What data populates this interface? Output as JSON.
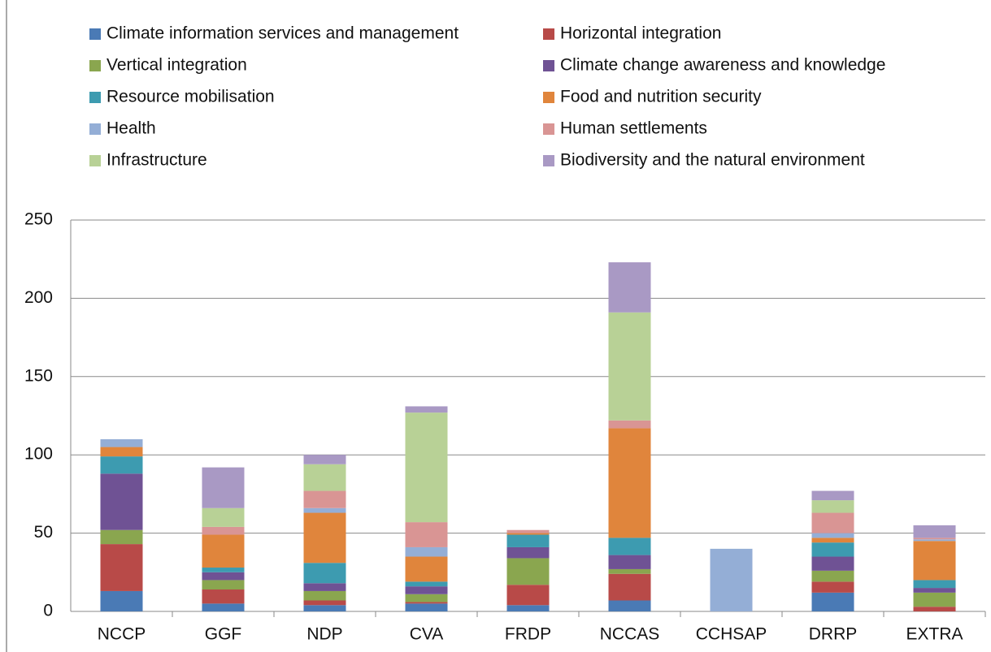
{
  "chart_data": {
    "type": "stacked_bar",
    "categories": [
      "NCCP",
      "GGF",
      "NDP",
      "CVA",
      "FRDP",
      "NCCAS",
      "CCHSAP",
      "DRRP",
      "EXTRA"
    ],
    "series": [
      {
        "name": "Climate information services and management",
        "color": "#4a7ab5",
        "values": [
          13,
          5,
          4,
          5,
          4,
          7,
          0,
          12,
          0
        ]
      },
      {
        "name": "Horizontal integration",
        "color": "#b84a48",
        "values": [
          30,
          9,
          3,
          1,
          13,
          17,
          0,
          7,
          3
        ]
      },
      {
        "name": "Vertical integration",
        "color": "#8aa64f",
        "values": [
          9,
          6,
          6,
          5,
          17,
          3,
          0,
          7,
          9
        ]
      },
      {
        "name": "Climate change awareness and knowledge",
        "color": "#6f5294",
        "values": [
          36,
          5,
          5,
          5,
          7,
          9,
          0,
          9,
          3
        ]
      },
      {
        "name": "Resource mobilisation",
        "color": "#3d9bb0",
        "values": [
          11,
          3,
          13,
          3,
          8,
          11,
          0,
          9,
          5
        ]
      },
      {
        "name": "Food and nutrition security",
        "color": "#e0853c",
        "values": [
          6,
          21,
          32,
          16,
          1,
          70,
          0,
          3,
          25
        ]
      },
      {
        "name": "Health",
        "color": "#94aed6",
        "values": [
          5,
          0,
          3,
          6,
          0,
          0,
          40,
          3,
          1
        ]
      },
      {
        "name": "Human settlements",
        "color": "#d99594",
        "values": [
          0,
          5,
          11,
          16,
          2,
          5,
          0,
          13,
          1
        ]
      },
      {
        "name": "Infrastructure",
        "color": "#b8d196",
        "values": [
          0,
          12,
          17,
          70,
          0,
          69,
          0,
          8,
          0
        ]
      },
      {
        "name": "Biodiversity and the natural environment",
        "color": "#a999c4",
        "values": [
          0,
          26,
          6,
          4,
          0,
          32,
          0,
          6,
          8
        ]
      }
    ],
    "ylim": [
      0,
      250
    ],
    "yticks": [
      0,
      50,
      100,
      150,
      200,
      250
    ],
    "grid": true
  }
}
